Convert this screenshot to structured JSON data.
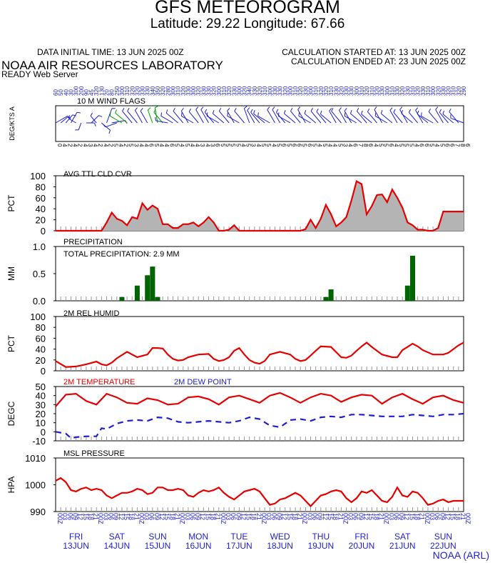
{
  "header": {
    "title": "GFS METEOROGRAM",
    "subtitle": "Latitude: 29.22 Longitude:  67.66",
    "init_time": "DATA INITIAL TIME: 13 JUN 2025 00Z",
    "lab": "NOAA AIR RESOURCES LABORATORY",
    "server": "READY Web Server",
    "calc_started": "CALCULATION STARTED AT: 13 JUN 2025 00Z",
    "calc_ended": "CALCULATION ENDED AT: 23 JUN 2025 00Z"
  },
  "footer": {
    "credit": "NOAA (ARL)"
  },
  "colors": {
    "red": "#e60000",
    "blue": "#1e1ed2",
    "green": "#006400",
    "gray": "#b4b4b4",
    "wind_green": "#00a000"
  },
  "chart_data": {
    "x_unit": "hours since 13 JUN 2025 00Z",
    "hour_labels": [
      "00Z",
      "03",
      "06",
      "09",
      "12",
      "15",
      "18",
      "21"
    ],
    "days": [
      {
        "dow": "FRI",
        "date": "13JUN"
      },
      {
        "dow": "SAT",
        "date": "14JUN"
      },
      {
        "dow": "SUN",
        "date": "15JUN"
      },
      {
        "dow": "MON",
        "date": "16JUN"
      },
      {
        "dow": "TUE",
        "date": "17JUN"
      },
      {
        "dow": "WED",
        "date": "18JUN"
      },
      {
        "dow": "THU",
        "date": "19JUN"
      },
      {
        "dow": "FRI",
        "date": "20JUN"
      },
      {
        "dow": "SAT",
        "date": "21JUN"
      },
      {
        "dow": "SUN",
        "date": "22JUN"
      }
    ],
    "panels": [
      {
        "id": "wind",
        "type": "wind-barbs",
        "label": "10 M  WIND FLAGS",
        "ylabel": "DEG/KTS  A",
        "hours": [
          0,
          3,
          6,
          9,
          12,
          15,
          18,
          21,
          24,
          27,
          30,
          33,
          36,
          39,
          42,
          45,
          48,
          51,
          54,
          57,
          60,
          63,
          66,
          69,
          72,
          75,
          78,
          81,
          84,
          87,
          90,
          93,
          96,
          99,
          102,
          105,
          108,
          111,
          114,
          117,
          120,
          123,
          126,
          129,
          132,
          135,
          138,
          141,
          144,
          147,
          150,
          153,
          156,
          159,
          162,
          165,
          168,
          171,
          174,
          177,
          180,
          183,
          186,
          189,
          192,
          195,
          198,
          201,
          204,
          207,
          210,
          213,
          216,
          219,
          222,
          225,
          228,
          231,
          234,
          237,
          240
        ],
        "directions": [
          60,
          50,
          40,
          30,
          300,
          200,
          90,
          45,
          320,
          130,
          20,
          80,
          250,
          300,
          310,
          320,
          320,
          330,
          330,
          340,
          350,
          320,
          280,
          300,
          310,
          320,
          330,
          300,
          320,
          330,
          330,
          320,
          300,
          310,
          320,
          330,
          300,
          320,
          340,
          330,
          320,
          310,
          300,
          330,
          330,
          320,
          300,
          310,
          320,
          330,
          300,
          310,
          320,
          320,
          310,
          330,
          320,
          330,
          330,
          300,
          310,
          320,
          310,
          320,
          330,
          300,
          310,
          330,
          320,
          330,
          310,
          320,
          330,
          310,
          300,
          320,
          330,
          320,
          310,
          320,
          290
        ],
        "speeds": [
          12,
          6,
          8,
          10,
          5,
          4,
          5,
          8,
          6,
          9,
          14,
          12,
          10,
          12,
          14,
          14,
          14,
          13,
          12,
          12,
          14,
          12,
          10,
          12,
          14,
          14,
          12,
          12,
          13,
          14,
          14,
          12,
          12,
          13,
          14,
          12,
          12,
          14,
          14,
          13,
          12,
          13,
          12,
          14,
          14,
          12,
          12,
          13,
          14,
          14,
          12,
          13,
          14,
          13,
          12,
          12,
          14,
          13,
          12,
          12,
          13,
          14,
          12,
          13,
          14,
          12,
          13,
          13,
          12,
          14,
          13,
          12,
          13,
          12,
          12,
          13,
          14,
          12,
          12,
          13,
          12
        ],
        "green_hours": [
          39,
          42,
          57,
          60,
          63
        ],
        "speed_labels": "04242434242542534465446545443436555545345545656656545445346786455645554665456678655556789"
      },
      {
        "id": "cloud",
        "type": "area",
        "label": "AVG TTL CLD CVR",
        "ylabel": "PCT",
        "ylim": [
          0,
          100
        ],
        "yticks": [
          0,
          20,
          40,
          60,
          80,
          100
        ],
        "x": [
          0,
          27,
          30,
          33,
          36,
          39,
          42,
          45,
          48,
          51,
          54,
          57,
          60,
          63,
          66,
          69,
          72,
          75,
          78,
          81,
          84,
          87,
          90,
          93,
          96,
          99,
          102,
          105,
          108,
          111,
          114,
          117,
          120,
          123,
          126,
          129,
          132,
          135,
          138,
          141,
          144,
          147,
          150,
          153,
          156,
          159,
          162,
          165,
          168,
          171,
          174,
          177,
          180,
          183,
          186,
          189,
          192,
          195,
          198,
          201,
          204,
          207,
          210,
          213,
          216,
          219,
          222,
          225,
          228,
          231,
          234,
          237,
          240
        ],
        "y": [
          0,
          0,
          15,
          33,
          22,
          18,
          10,
          25,
          22,
          50,
          38,
          46,
          40,
          12,
          12,
          5,
          5,
          12,
          12,
          15,
          8,
          15,
          25,
          15,
          0,
          0,
          2,
          10,
          0,
          0,
          0,
          0,
          0,
          0,
          0,
          0,
          0,
          0,
          0,
          0,
          0,
          3,
          20,
          5,
          22,
          47,
          30,
          8,
          15,
          25,
          55,
          90,
          85,
          30,
          45,
          65,
          66,
          52,
          75,
          60,
          42,
          15,
          10,
          2,
          2,
          0,
          0,
          5,
          35,
          35,
          35,
          35,
          35
        ]
      },
      {
        "id": "precip",
        "type": "bar",
        "label": "PRECIPITATION",
        "ylabel": "MM",
        "total_text": "TOTAL PRECIPITATION:   2.9 MM",
        "ylim": [
          0,
          1.0
        ],
        "yticks": [
          0.0,
          0.5,
          1.0
        ],
        "ytick_labels": [
          "0.0",
          "0.5",
          "1.0"
        ],
        "x": [
          39,
          48,
          54,
          57,
          60,
          159,
          162,
          207,
          210
        ],
        "y": [
          0.07,
          0.28,
          0.47,
          0.63,
          0.07,
          0.07,
          0.21,
          0.28,
          0.83
        ]
      },
      {
        "id": "rh",
        "type": "line",
        "label": "2M REL HUMID",
        "ylabel": "PCT",
        "ylim": [
          0,
          100
        ],
        "yticks": [
          0,
          20,
          40,
          60,
          80,
          100
        ],
        "x": [
          0,
          6,
          12,
          18,
          24,
          27,
          30,
          33,
          36,
          42,
          48,
          54,
          57,
          60,
          63,
          66,
          69,
          72,
          75,
          78,
          84,
          90,
          93,
          96,
          99,
          102,
          105,
          108,
          111,
          114,
          117,
          120,
          123,
          126,
          132,
          138,
          141,
          144,
          147,
          150,
          153,
          156,
          162,
          168,
          171,
          174,
          177,
          180,
          183,
          186,
          192,
          198,
          201,
          204,
          207,
          210,
          213,
          216,
          222,
          228,
          231,
          234,
          237,
          240
        ],
        "y": [
          18,
          7,
          8,
          12,
          17,
          12,
          10,
          15,
          23,
          35,
          25,
          30,
          42,
          42,
          41,
          30,
          22,
          19,
          20,
          25,
          30,
          31,
          22,
          18,
          20,
          25,
          37,
          42,
          30,
          20,
          15,
          13,
          18,
          30,
          35,
          30,
          22,
          18,
          20,
          28,
          37,
          45,
          44,
          25,
          24,
          28,
          37,
          45,
          52,
          44,
          30,
          25,
          25,
          38,
          44,
          50,
          45,
          38,
          30,
          30,
          33,
          40,
          47,
          52
        ]
      },
      {
        "id": "temp",
        "type": "line",
        "label": "2M TEMPERATURE",
        "label2": "2M   DEW POINT",
        "ylabel": "DEGC",
        "ylim": [
          -10,
          50
        ],
        "yticks": [
          -10,
          0,
          10,
          20,
          30,
          40,
          50
        ],
        "series": [
          {
            "name": "2M TEMPERATURE",
            "color": "red",
            "dash": false,
            "x": [
              0,
              6,
              12,
              18,
              24,
              30,
              36,
              42,
              48,
              54,
              60,
              66,
              72,
              78,
              84,
              90,
              96,
              102,
              108,
              114,
              120,
              126,
              132,
              138,
              144,
              150,
              156,
              162,
              168,
              174,
              180,
              186,
              192,
              198,
              204,
              210,
              216,
              222,
              228,
              234,
              240
            ],
            "y": [
              28,
              41,
              42,
              34,
              30,
              42,
              38,
              32,
              31,
              37,
              35,
              30,
              31,
              38,
              39,
              36,
              30,
              38,
              40,
              36,
              32,
              40,
              43,
              38,
              32,
              38,
              42,
              40,
              33,
              38,
              41,
              40,
              31,
              38,
              42,
              36,
              31,
              38,
              40,
              35,
              32
            ]
          },
          {
            "name": "2M   DEW POINT",
            "color": "blue",
            "dash": true,
            "x": [
              0,
              6,
              9,
              12,
              18,
              24,
              27,
              30,
              36,
              42,
              48,
              54,
              60,
              66,
              72,
              78,
              84,
              90,
              96,
              102,
              108,
              114,
              120,
              126,
              132,
              138,
              144,
              150,
              156,
              162,
              168,
              174,
              180,
              186,
              192,
              198,
              204,
              210,
              216,
              222,
              228,
              234,
              240
            ],
            "y": [
              0,
              -2,
              -7,
              -6,
              -5,
              -5,
              4,
              3,
              9,
              12,
              13,
              12,
              16,
              15,
              11,
              10,
              11,
              12,
              11,
              10,
              12,
              16,
              14,
              7,
              5,
              13,
              14,
              12,
              16,
              17,
              16,
              19,
              19,
              18,
              17,
              17,
              17,
              19,
              18,
              17,
              19,
              19,
              20
            ]
          }
        ]
      },
      {
        "id": "pressure",
        "type": "line",
        "label": "MSL PRESSURE",
        "ylabel": "HPA",
        "ylim": [
          990,
          1010
        ],
        "yticks": [
          990,
          1000,
          1010
        ],
        "x": [
          0,
          3,
          6,
          9,
          12,
          15,
          18,
          21,
          24,
          27,
          30,
          33,
          36,
          39,
          42,
          45,
          48,
          51,
          54,
          57,
          60,
          63,
          66,
          69,
          72,
          75,
          78,
          81,
          84,
          87,
          90,
          93,
          96,
          99,
          102,
          105,
          108,
          111,
          114,
          117,
          120,
          123,
          126,
          129,
          132,
          135,
          138,
          141,
          144,
          147,
          150,
          153,
          156,
          159,
          162,
          165,
          168,
          171,
          174,
          177,
          180,
          183,
          186,
          189,
          192,
          195,
          198,
          201,
          204,
          207,
          210,
          213,
          216,
          219,
          222,
          225,
          228,
          231,
          234,
          237,
          240
        ],
        "y": [
          1001.5,
          1002.5,
          1001,
          998,
          997.5,
          998.5,
          999,
          998,
          998.5,
          998,
          996,
          995,
          996,
          997,
          997,
          997.5,
          998.5,
          998,
          996.5,
          997,
          999,
          999,
          998,
          998,
          998.5,
          998,
          996,
          995.5,
          997,
          998,
          997.5,
          998,
          999,
          997,
          995.5,
          994.5,
          996,
          997.5,
          998,
          998.5,
          997.5,
          995,
          992.5,
          993,
          994.5,
          995,
          996,
          997,
          996,
          994,
          992,
          994,
          996,
          996.5,
          997.5,
          998,
          997.5,
          995,
          993.5,
          995,
          997.5,
          997,
          998,
          996,
          994,
          993.5,
          995.5,
          999,
          996,
          995.5,
          997.5,
          997,
          995,
          992.5,
          993,
          994,
          994.5,
          993.5,
          994,
          994,
          994
        ]
      }
    ]
  }
}
